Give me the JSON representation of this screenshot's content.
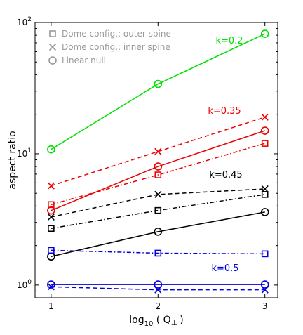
{
  "chart_data": {
    "type": "line",
    "xlabel": "log",
    "xlabel_sub": "10",
    "xlabel_rest": "( Q",
    "xlabel_perp": "⊥",
    "xlabel_close": ")",
    "ylabel": "aspect ratio",
    "x_scale": "linear",
    "y_scale": "log",
    "xlim": [
      0.85,
      3.12
    ],
    "ylim": [
      0.8,
      100
    ],
    "x_ticks": [
      1,
      2,
      3
    ],
    "x_tick_labels": [
      "1",
      "2",
      "3"
    ],
    "y_ticks": [
      1,
      10,
      100
    ],
    "y_tick_labels": [
      {
        "base": "10",
        "exp": "0"
      },
      {
        "base": "10",
        "exp": "1"
      },
      {
        "base": "10",
        "exp": "2"
      }
    ],
    "grid": false,
    "legend_position": "top-left",
    "legend": [
      {
        "label": "Dome config.: outer spine",
        "marker": "square"
      },
      {
        "label": "Dome config.: inner spine",
        "marker": "x"
      },
      {
        "label": "Linear null",
        "marker": "circle"
      }
    ],
    "x": [
      1,
      2,
      3
    ],
    "groups": [
      {
        "label": "k=0.2",
        "color": "#00e000",
        "series": [
          {
            "marker": "circle",
            "dash": "solid",
            "values": [
              10.8,
              34,
              82
            ]
          }
        ]
      },
      {
        "label": "k=0.35",
        "color": "#ee0000",
        "series": [
          {
            "marker": "x",
            "dash": "dashed",
            "values": [
              5.7,
              10.4,
              19
            ]
          },
          {
            "marker": "circle",
            "dash": "solid",
            "values": [
              3.7,
              8.0,
              15
            ]
          },
          {
            "marker": "square",
            "dash": "dashdot",
            "values": [
              4.1,
              6.9,
              12
            ]
          }
        ]
      },
      {
        "label": "k=0.45",
        "color": "#000000",
        "series": [
          {
            "marker": "x",
            "dash": "dashed",
            "values": [
              3.3,
              4.9,
              5.4
            ]
          },
          {
            "marker": "square",
            "dash": "dashdot",
            "values": [
              2.7,
              3.7,
              4.9
            ]
          },
          {
            "marker": "circle",
            "dash": "solid",
            "values": [
              1.65,
              2.55,
              3.6
            ]
          }
        ]
      },
      {
        "label": "k=0.5",
        "color": "#0000dd",
        "series": [
          {
            "marker": "square",
            "dash": "dashdot",
            "values": [
              1.84,
              1.75,
              1.73
            ]
          },
          {
            "marker": "circle",
            "dash": "solid",
            "values": [
              1.01,
              1.01,
              1.01
            ]
          },
          {
            "marker": "x",
            "dash": "dashed",
            "values": [
              0.97,
              0.92,
              0.92
            ]
          }
        ]
      }
    ]
  }
}
